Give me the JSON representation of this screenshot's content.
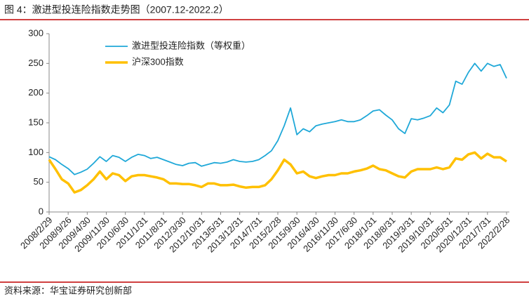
{
  "chart_data": {
    "type": "line",
    "title": "图 4：激进型投连险指数走势图（2007.12-2022.2）",
    "source": "资料来源：华宝证券研究创新部",
    "categories": [
      "2008/2/29",
      null,
      null,
      "2008/9/26",
      null,
      null,
      "2009/4/30",
      null,
      null,
      "2009/11/30",
      null,
      null,
      "2010/6/30",
      null,
      null,
      "2011/1/31",
      null,
      null,
      "2011/8/31",
      null,
      null,
      "2012/3/30",
      null,
      null,
      "2012/10/31",
      null,
      null,
      "2013/5/31",
      null,
      null,
      "2013/12/31",
      null,
      null,
      "2014/7/31",
      null,
      null,
      "2015/2/28",
      null,
      null,
      "2015/9/30",
      null,
      null,
      "2016/4/30",
      null,
      null,
      "2016/11/30",
      null,
      null,
      "2017/6/30",
      null,
      null,
      "2018/1/31",
      null,
      null,
      "2018/8/31",
      null,
      null,
      "2019/3/31",
      null,
      null,
      "2019/10/31",
      null,
      null,
      "2020/5/31",
      null,
      null,
      "2020/12/31",
      null,
      null,
      "2021/7/31",
      null,
      null,
      "2022/2/28"
    ],
    "series": [
      {
        "name": "激进型投连险指数（等权重）",
        "color": "#1fa8d8",
        "values": [
          93,
          88,
          80,
          73,
          63,
          67,
          72,
          82,
          93,
          85,
          95,
          92,
          85,
          92,
          97,
          95,
          90,
          92,
          88,
          84,
          80,
          78,
          82,
          83,
          77,
          80,
          83,
          82,
          84,
          88,
          85,
          84,
          85,
          88,
          95,
          103,
          120,
          145,
          175,
          130,
          140,
          135,
          145,
          148,
          150,
          152,
          155,
          152,
          152,
          155,
          162,
          170,
          172,
          163,
          155,
          140,
          132,
          157,
          155,
          158,
          162,
          175,
          167,
          180,
          220,
          215,
          235,
          250,
          237,
          250,
          245,
          248,
          225
        ]
      },
      {
        "name": "沪深300指数",
        "color": "#ffc000",
        "values": [
          88,
          72,
          55,
          48,
          33,
          37,
          45,
          55,
          68,
          55,
          65,
          62,
          52,
          60,
          62,
          62,
          60,
          58,
          55,
          48,
          48,
          47,
          47,
          45,
          42,
          48,
          48,
          45,
          45,
          46,
          43,
          41,
          42,
          42,
          45,
          55,
          70,
          88,
          80,
          65,
          68,
          60,
          57,
          60,
          62,
          62,
          65,
          65,
          68,
          70,
          73,
          78,
          72,
          70,
          65,
          60,
          58,
          68,
          72,
          72,
          72,
          75,
          72,
          75,
          90,
          88,
          97,
          100,
          90,
          98,
          92,
          92,
          85
        ]
      }
    ],
    "ylim": [
      0,
      300
    ],
    "yticks": [
      0,
      50,
      100,
      150,
      200,
      250,
      300
    ],
    "grid": false
  }
}
